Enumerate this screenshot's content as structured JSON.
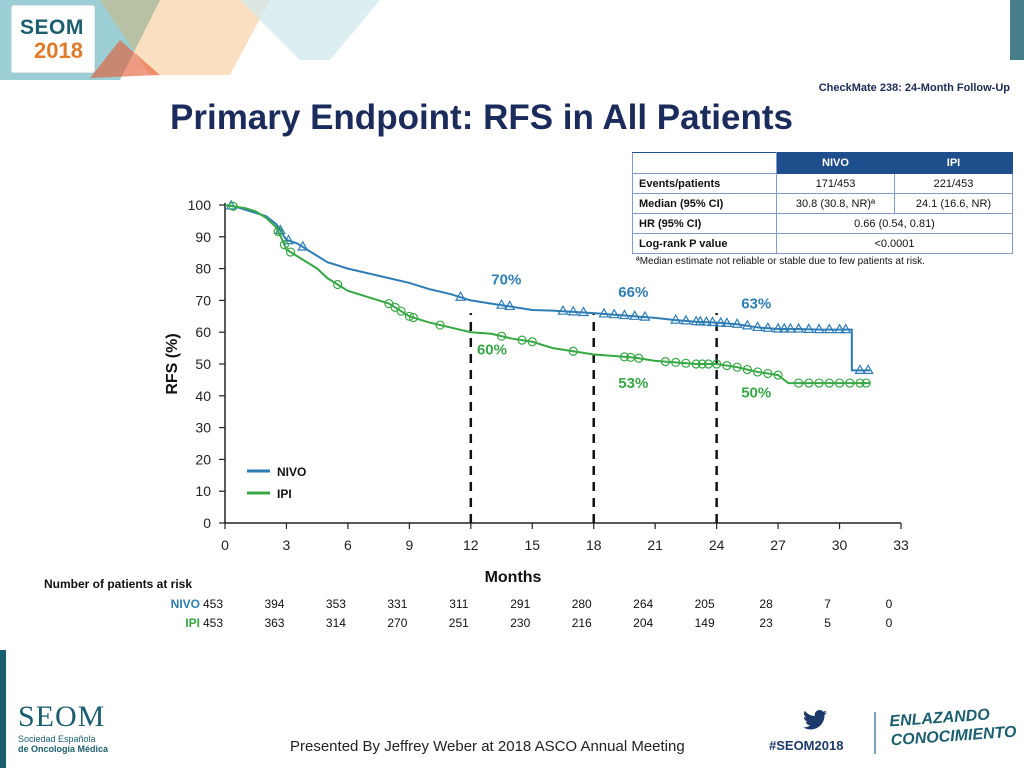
{
  "header": {
    "logo_name": "SEOM",
    "logo_year": "2018",
    "subtitle": "CheckMate 238: 24-Month Follow-Up",
    "title": "Primary Endpoint: RFS in All Patients"
  },
  "stats_table": {
    "columns": [
      "",
      "NIVO",
      "IPI"
    ],
    "rows": [
      {
        "label": "Events/patients",
        "nivo": "171/453",
        "ipi": "221/453"
      },
      {
        "label": "Median (95% CI)",
        "nivo": "30.8 (30.8, NR)ª",
        "ipi": "24.1 (16.6, NR)"
      },
      {
        "label": "HR (95% CI)",
        "combined": "0.66 (0.54, 0.81)"
      },
      {
        "label": "Log-rank P value",
        "combined": "<0.0001"
      }
    ],
    "footnote": "ªMedian estimate not reliable or stable due to few patients at risk."
  },
  "chart_data": {
    "type": "line",
    "xlabel": "Months",
    "ylabel": "RFS (%)",
    "xlim": [
      0,
      33
    ],
    "ylim": [
      0,
      100
    ],
    "xticks": [
      0,
      3,
      6,
      9,
      12,
      15,
      18,
      21,
      24,
      27,
      30,
      33
    ],
    "yticks": [
      0,
      10,
      20,
      30,
      40,
      50,
      60,
      70,
      80,
      90,
      100
    ],
    "legend_position": "bottom-left",
    "reference_lines_x": [
      12,
      18,
      24
    ],
    "series": [
      {
        "name": "NIVO",
        "color": "#2e7db5",
        "marker": "triangle",
        "points": [
          [
            0,
            100
          ],
          [
            0.5,
            99.5
          ],
          [
            1,
            98.5
          ],
          [
            1.5,
            97.5
          ],
          [
            2,
            96.5
          ],
          [
            2.5,
            94
          ],
          [
            2.8,
            91
          ],
          [
            3,
            89
          ],
          [
            3.5,
            88
          ],
          [
            4,
            86
          ],
          [
            4.5,
            84
          ],
          [
            5,
            82
          ],
          [
            6,
            80
          ],
          [
            7,
            78.5
          ],
          [
            8,
            77
          ],
          [
            9,
            75.5
          ],
          [
            10,
            73.5
          ],
          [
            11,
            72
          ],
          [
            12,
            70
          ],
          [
            13,
            69
          ],
          [
            14,
            68
          ],
          [
            15,
            67
          ],
          [
            16,
            66.8
          ],
          [
            17,
            66.4
          ],
          [
            18,
            66
          ],
          [
            19,
            65.5
          ],
          [
            20,
            65
          ],
          [
            21,
            64.5
          ],
          [
            22,
            63.8
          ],
          [
            23,
            63.3
          ],
          [
            24,
            63
          ],
          [
            25,
            62.5
          ],
          [
            26,
            61.5
          ],
          [
            27,
            61
          ],
          [
            28,
            61
          ],
          [
            29,
            60.8
          ],
          [
            30,
            60.8
          ],
          [
            30.6,
            60.8
          ],
          [
            30.6,
            48
          ],
          [
            31.5,
            48
          ]
        ],
        "censor_x": [
          0.3,
          2.7,
          3.1,
          3.8,
          11.5,
          13.5,
          13.9,
          16.5,
          17,
          17.5,
          18.5,
          19,
          19.5,
          20,
          20.5,
          22,
          22.5,
          23,
          23.2,
          23.5,
          23.8,
          24.2,
          24.5,
          25,
          25.5,
          26,
          26.5,
          27,
          27.3,
          27.6,
          28,
          28.5,
          29,
          29.5,
          30,
          30.3,
          31,
          31.4
        ]
      },
      {
        "name": "IPI",
        "color": "#37a845",
        "marker": "circle",
        "points": [
          [
            0,
            100
          ],
          [
            0.5,
            99.5
          ],
          [
            1,
            99
          ],
          [
            1.5,
            98
          ],
          [
            2,
            96
          ],
          [
            2.5,
            93
          ],
          [
            2.8,
            89
          ],
          [
            3,
            86
          ],
          [
            3.5,
            84
          ],
          [
            4,
            82
          ],
          [
            4.5,
            80
          ],
          [
            5,
            77
          ],
          [
            6,
            73
          ],
          [
            7,
            71
          ],
          [
            8,
            69
          ],
          [
            9,
            65
          ],
          [
            10,
            63
          ],
          [
            11,
            61.5
          ],
          [
            12,
            60
          ],
          [
            13,
            59.5
          ],
          [
            14,
            58
          ],
          [
            15,
            57
          ],
          [
            16,
            55
          ],
          [
            17,
            54
          ],
          [
            18,
            53
          ],
          [
            19,
            52.5
          ],
          [
            20,
            52
          ],
          [
            21,
            51
          ],
          [
            22,
            50.5
          ],
          [
            23,
            50
          ],
          [
            24,
            50
          ],
          [
            25,
            49
          ],
          [
            26,
            47.5
          ],
          [
            27,
            46.5
          ],
          [
            27.5,
            44
          ],
          [
            28,
            44
          ],
          [
            30,
            44
          ],
          [
            31.5,
            44
          ]
        ],
        "censor_x": [
          0.4,
          2.6,
          2.9,
          3.2,
          5.5,
          8,
          8.3,
          8.6,
          9,
          9.2,
          10.5,
          13.5,
          14.5,
          15,
          17,
          19.5,
          19.8,
          20.2,
          21.5,
          22,
          22.5,
          23,
          23.3,
          23.6,
          24,
          24.5,
          25,
          25.5,
          26,
          26.5,
          27,
          28,
          28.5,
          29,
          29.5,
          30,
          30.5,
          31,
          31.3
        ]
      }
    ],
    "annotations": [
      {
        "x": 13,
        "y": 75,
        "text": "70%",
        "series": "NIVO"
      },
      {
        "x": 12.3,
        "y": 53,
        "text": "60%",
        "series": "IPI"
      },
      {
        "x": 19.2,
        "y": 71,
        "text": "66%",
        "series": "NIVO"
      },
      {
        "x": 19.2,
        "y": 42.5,
        "text": "53%",
        "series": "IPI"
      },
      {
        "x": 25.2,
        "y": 67.5,
        "text": "63%",
        "series": "NIVO"
      },
      {
        "x": 25.2,
        "y": 39.5,
        "text": "50%",
        "series": "IPI"
      }
    ]
  },
  "risk_table": {
    "title": "Number of patients at risk",
    "rows": [
      {
        "label": "NIVO",
        "color": "#2e7db5",
        "values": [
          "453",
          "394",
          "353",
          "331",
          "311",
          "291",
          "280",
          "264",
          "205",
          "28",
          "7",
          "0"
        ]
      },
      {
        "label": "IPI",
        "color": "#37a845",
        "values": [
          "453",
          "363",
          "314",
          "270",
          "251",
          "230",
          "216",
          "204",
          "149",
          "23",
          "5",
          "0"
        ]
      }
    ]
  },
  "footer": {
    "org_name": "SEOM",
    "org_line1": "Sociedad Española",
    "org_line2": "de Oncología Médica",
    "presented_by": "Presented By Jeffrey Weber at 2018 ASCO Annual Meeting",
    "hashtag": "#SEOM2018",
    "slogan_line1": "ENLAZANDO",
    "slogan_line2": "CONOCIMIENTO"
  }
}
